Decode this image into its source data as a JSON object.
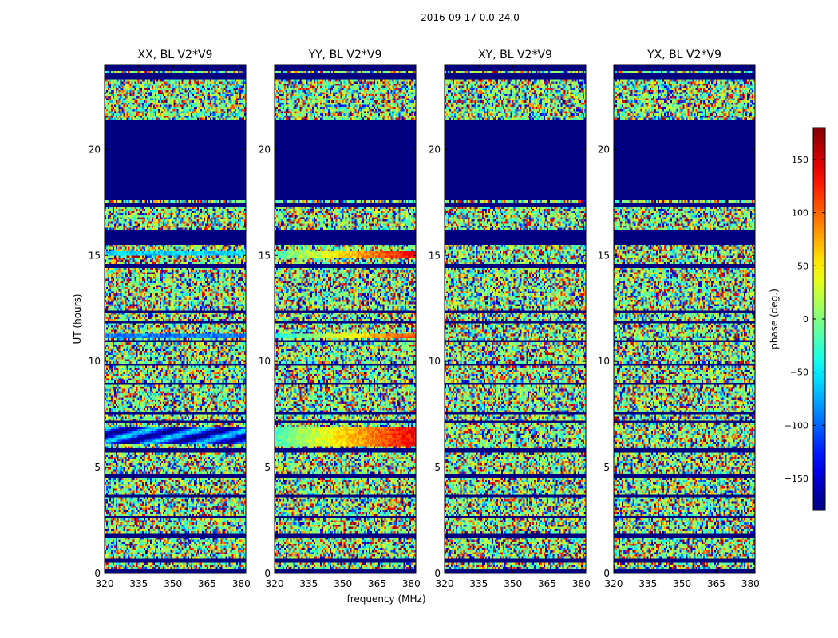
{
  "chart_data": {
    "type": "heatmap",
    "suptitle": "2016-09-17 0.0-24.0",
    "xlabel": "frequency (MHz)",
    "ylabel": "UT (hours)",
    "xlim": [
      320,
      382
    ],
    "ylim": [
      0,
      24
    ],
    "x_ticks": [
      320,
      335,
      350,
      365,
      380
    ],
    "x_tick_labels": [
      "320",
      "335",
      "350",
      "365",
      "380"
    ],
    "y_ticks": [
      0,
      5,
      10,
      15,
      20
    ],
    "y_tick_labels": [
      "0",
      "5",
      "10",
      "15",
      "20"
    ],
    "colormap": "jet",
    "colorbar": {
      "label": "phase (deg.)",
      "range": [
        -180,
        180
      ],
      "ticks": [
        150,
        100,
        50,
        0,
        -50,
        -100,
        -150
      ],
      "tick_labels": [
        "150",
        "100",
        "50",
        "0",
        "−50",
        "−100",
        "−150"
      ]
    },
    "panels": [
      {
        "title": "XX, BL V2*V9",
        "polarization": "XX"
      },
      {
        "title": "YY, BL V2*V9",
        "polarization": "YY"
      },
      {
        "title": "XY, BL V2*V9",
        "polarization": "XY"
      },
      {
        "title": "YX, BL V2*V9",
        "polarization": "YX"
      }
    ],
    "flagged_value_deg": -180,
    "flagged_ranges_ut": [
      [
        0.0,
        0.15
      ],
      [
        0.55,
        0.7
      ],
      [
        1.75,
        1.95
      ],
      [
        2.55,
        2.75
      ],
      [
        3.6,
        3.75
      ],
      [
        4.5,
        4.65
      ],
      [
        5.75,
        5.9
      ],
      [
        7.1,
        7.25
      ],
      [
        7.5,
        7.6
      ],
      [
        8.95,
        9.05
      ],
      [
        9.85,
        9.95
      ],
      [
        10.9,
        11.0
      ],
      [
        11.8,
        11.9
      ],
      [
        12.3,
        12.4
      ],
      [
        14.4,
        14.6
      ],
      [
        15.5,
        16.2
      ],
      [
        17.3,
        17.5
      ],
      [
        17.6,
        21.4
      ],
      [
        23.35,
        23.6
      ],
      [
        23.7,
        24.0
      ]
    ],
    "coherent_features": [
      {
        "panel": 0,
        "ut_range": [
          11.1,
          11.3
        ],
        "mean_phase_deg": -90,
        "note": "steady stripe"
      },
      {
        "panel": 0,
        "ut_range": [
          6.1,
          6.9
        ],
        "mean_phase_deg": -120,
        "note": "wavy band"
      },
      {
        "panel": 0,
        "ut_range": [
          15.0,
          15.2
        ],
        "mean_phase_deg": -60,
        "note": "stripe"
      },
      {
        "panel": 1,
        "ut_range": [
          11.1,
          11.3
        ],
        "mean_phase_deg": 20,
        "note": "phase ramp"
      },
      {
        "panel": 1,
        "ut_range": [
          6.0,
          6.9
        ],
        "mean_phase_deg": 40,
        "note": "phase ramp"
      },
      {
        "panel": 1,
        "ut_range": [
          14.9,
          15.2
        ],
        "mean_phase_deg": 40,
        "note": "phase ramp"
      }
    ]
  }
}
